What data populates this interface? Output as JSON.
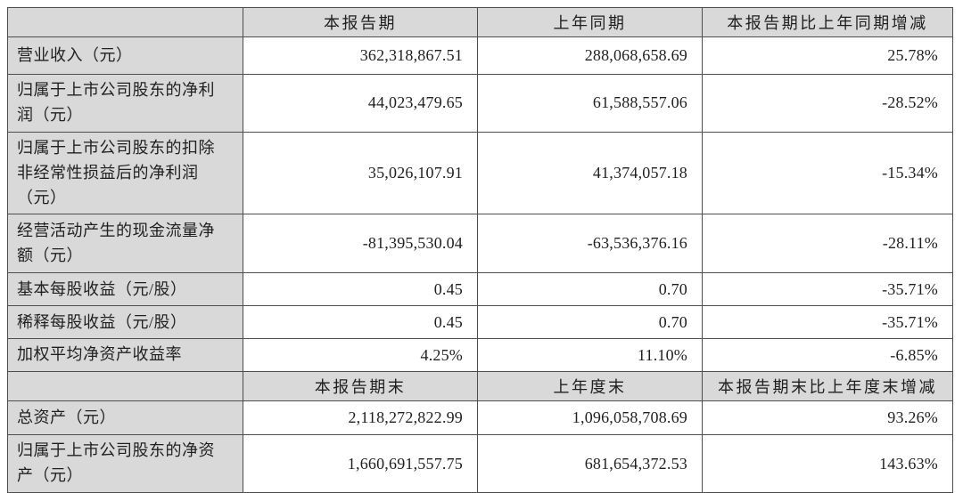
{
  "colors": {
    "header_bg": "#d9d9d9",
    "label_bg": "#d9d9d9",
    "value_bg": "#ffffff",
    "border": "#4d4d4d",
    "text": "#1f1f1f"
  },
  "table": {
    "period_header": {
      "label": "",
      "current": "本报告期",
      "prior": "上年同期",
      "change": "本报告期比上年同期增减"
    },
    "period_rows": [
      {
        "label": "营业收入（元）",
        "current": "362,318,867.51",
        "prior": "288,068,658.69",
        "change": "25.78%"
      },
      {
        "label": "归属于上市公司股东的净利润（元）",
        "current": "44,023,479.65",
        "prior": "61,588,557.06",
        "change": "-28.52%"
      },
      {
        "label": "归属于上市公司股东的扣除非经常性损益后的净利润（元）",
        "current": "35,026,107.91",
        "prior": "41,374,057.18",
        "change": "-15.34%"
      },
      {
        "label": "经营活动产生的现金流量净额（元）",
        "current": "-81,395,530.04",
        "prior": "-63,536,376.16",
        "change": "-28.11%"
      },
      {
        "label": "基本每股收益（元/股）",
        "current": "0.45",
        "prior": "0.70",
        "change": "-35.71%"
      },
      {
        "label": "稀释每股收益（元/股）",
        "current": "0.45",
        "prior": "0.70",
        "change": "-35.71%"
      },
      {
        "label": "加权平均净资产收益率",
        "current": "4.25%",
        "prior": "11.10%",
        "change": "-6.85%"
      }
    ],
    "end_header": {
      "label": "",
      "current": "本报告期末",
      "prior": "上年度末",
      "change": "本报告期末比上年度末增减"
    },
    "end_rows": [
      {
        "label": "总资产（元）",
        "current": "2,118,272,822.99",
        "prior": "1,096,058,708.69",
        "change": "93.26%"
      },
      {
        "label": "归属于上市公司股东的净资产（元）",
        "current": "1,660,691,557.75",
        "prior": "681,654,372.53",
        "change": "143.63%"
      }
    ]
  }
}
